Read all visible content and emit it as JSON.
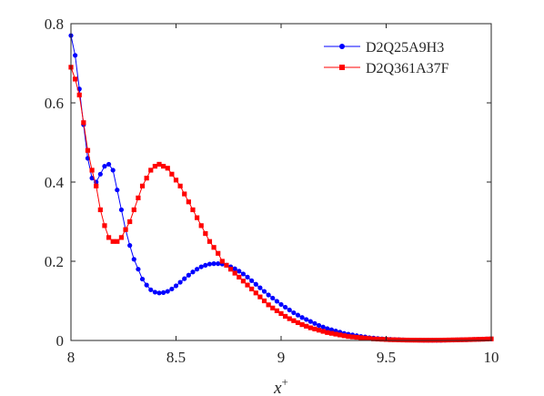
{
  "chart_data": {
    "type": "line",
    "title": "",
    "xlabel": "x",
    "xlabel_sup": "+",
    "ylabel": "",
    "xlim": [
      8,
      10
    ],
    "ylim": [
      0,
      0.8
    ],
    "xticks": [
      "8",
      "8.5",
      "9",
      "9.5",
      "10"
    ],
    "yticks": [
      "0",
      "0.2",
      "0.4",
      "0.6",
      "0.8"
    ],
    "grid": false,
    "legend_position": "top-right",
    "series": [
      {
        "name": "D2Q25A9H3",
        "color": "#0000ff",
        "marker": "circle",
        "x": [
          8.0,
          8.02,
          8.04,
          8.06,
          8.08,
          8.1,
          8.12,
          8.14,
          8.16,
          8.18,
          8.2,
          8.22,
          8.24,
          8.26,
          8.28,
          8.3,
          8.32,
          8.34,
          8.36,
          8.38,
          8.4,
          8.42,
          8.44,
          8.46,
          8.48,
          8.5,
          8.52,
          8.54,
          8.56,
          8.58,
          8.6,
          8.62,
          8.64,
          8.66,
          8.68,
          8.7,
          8.72,
          8.74,
          8.76,
          8.78,
          8.8,
          8.82,
          8.84,
          8.86,
          8.88,
          8.9,
          8.92,
          8.94,
          8.96,
          8.98,
          9.0,
          9.02,
          9.04,
          9.06,
          9.08,
          9.1,
          9.12,
          9.14,
          9.16,
          9.18,
          9.2,
          9.22,
          9.24,
          9.26,
          9.28,
          9.3,
          9.32,
          9.34,
          9.36,
          9.38,
          9.4,
          9.42,
          9.44,
          9.46,
          9.48,
          9.5,
          9.52,
          9.54,
          9.56,
          9.58,
          9.6,
          9.62,
          9.64,
          9.66,
          9.68,
          9.7,
          9.72,
          9.74,
          9.76,
          9.78,
          9.8,
          9.82,
          9.84,
          9.86,
          9.88,
          9.9,
          9.92,
          9.94,
          9.96,
          9.98,
          10.0
        ],
        "y": [
          0.77,
          0.72,
          0.635,
          0.545,
          0.46,
          0.41,
          0.4,
          0.42,
          0.44,
          0.445,
          0.43,
          0.38,
          0.33,
          0.28,
          0.24,
          0.205,
          0.18,
          0.155,
          0.14,
          0.128,
          0.122,
          0.12,
          0.121,
          0.124,
          0.13,
          0.138,
          0.147,
          0.156,
          0.165,
          0.173,
          0.18,
          0.186,
          0.19,
          0.193,
          0.194,
          0.194,
          0.193,
          0.19,
          0.186,
          0.181,
          0.175,
          0.168,
          0.16,
          0.151,
          0.142,
          0.133,
          0.124,
          0.115,
          0.107,
          0.099,
          0.091,
          0.084,
          0.077,
          0.07,
          0.064,
          0.058,
          0.053,
          0.048,
          0.043,
          0.038,
          0.034,
          0.03,
          0.027,
          0.024,
          0.021,
          0.018,
          0.016,
          0.014,
          0.012,
          0.01,
          0.009,
          0.007,
          0.006,
          0.005,
          0.004,
          0.0035,
          0.003,
          0.0025,
          0.002,
          0.0015,
          0.001,
          0.001,
          0.001,
          0.0008,
          0.0006,
          0.0005,
          0.0005,
          0.0005,
          0.0006,
          0.0008,
          0.001,
          0.0012,
          0.0015,
          0.0018,
          0.002,
          0.0023,
          0.0026,
          0.003,
          0.0034,
          0.0038,
          0.004
        ]
      },
      {
        "name": "D2Q361A37F",
        "color": "#ff0000",
        "marker": "square",
        "x": [
          8.0,
          8.02,
          8.04,
          8.06,
          8.08,
          8.1,
          8.12,
          8.14,
          8.16,
          8.18,
          8.2,
          8.22,
          8.24,
          8.26,
          8.28,
          8.3,
          8.32,
          8.34,
          8.36,
          8.38,
          8.4,
          8.42,
          8.44,
          8.46,
          8.48,
          8.5,
          8.52,
          8.54,
          8.56,
          8.58,
          8.6,
          8.62,
          8.64,
          8.66,
          8.68,
          8.7,
          8.72,
          8.74,
          8.76,
          8.78,
          8.8,
          8.82,
          8.84,
          8.86,
          8.88,
          8.9,
          8.92,
          8.94,
          8.96,
          8.98,
          9.0,
          9.02,
          9.04,
          9.06,
          9.08,
          9.1,
          9.12,
          9.14,
          9.16,
          9.18,
          9.2,
          9.22,
          9.24,
          9.26,
          9.28,
          9.3,
          9.32,
          9.34,
          9.36,
          9.38,
          9.4,
          9.42,
          9.44,
          9.46,
          9.48,
          9.5,
          9.52,
          9.54,
          9.56,
          9.58,
          9.6,
          9.62,
          9.64,
          9.66,
          9.68,
          9.7,
          9.72,
          9.74,
          9.76,
          9.78,
          9.8,
          9.82,
          9.84,
          9.86,
          9.88,
          9.9,
          9.92,
          9.94,
          9.96,
          9.98,
          10.0
        ],
        "y": [
          0.69,
          0.66,
          0.62,
          0.55,
          0.48,
          0.43,
          0.39,
          0.33,
          0.29,
          0.26,
          0.25,
          0.25,
          0.26,
          0.28,
          0.3,
          0.33,
          0.36,
          0.39,
          0.41,
          0.43,
          0.44,
          0.445,
          0.44,
          0.435,
          0.42,
          0.405,
          0.39,
          0.37,
          0.35,
          0.33,
          0.31,
          0.29,
          0.27,
          0.25,
          0.235,
          0.22,
          0.2,
          0.19,
          0.18,
          0.17,
          0.16,
          0.15,
          0.14,
          0.13,
          0.12,
          0.11,
          0.1,
          0.09,
          0.082,
          0.075,
          0.068,
          0.061,
          0.055,
          0.05,
          0.045,
          0.04,
          0.036,
          0.032,
          0.029,
          0.026,
          0.023,
          0.02,
          0.018,
          0.016,
          0.014,
          0.012,
          0.01,
          0.009,
          0.008,
          0.007,
          0.006,
          0.005,
          0.004,
          0.0035,
          0.003,
          0.0025,
          0.002,
          0.0018,
          0.0015,
          0.0012,
          0.001,
          0.0009,
          0.0008,
          0.0007,
          0.0006,
          0.0006,
          0.0006,
          0.0007,
          0.0008,
          0.001,
          0.0012,
          0.0014,
          0.0016,
          0.0018,
          0.002,
          0.0023,
          0.0026,
          0.0029,
          0.0032,
          0.0036,
          0.004
        ]
      }
    ]
  }
}
